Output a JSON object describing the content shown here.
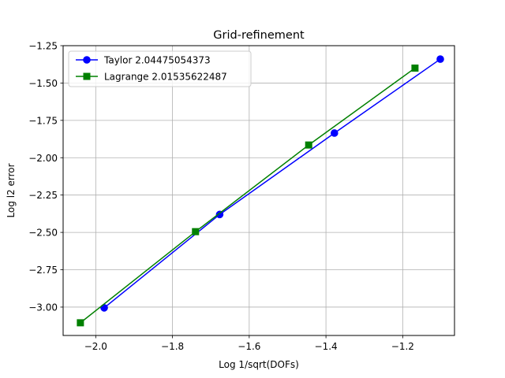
{
  "chart_data": {
    "type": "line",
    "title": "Grid-refinement",
    "xlabel": "Log 1/sqrt(DOFs)",
    "ylabel": "Log l2 error",
    "xlim": [
      -2.085,
      -1.065
    ],
    "ylim": [
      -3.19,
      -1.25
    ],
    "xticks": [
      -2.0,
      -1.8,
      -1.6,
      -1.4,
      -1.2
    ],
    "xtick_labels": [
      "−2.0",
      "−1.8",
      "−1.6",
      "−1.4",
      "−1.2"
    ],
    "yticks": [
      -1.25,
      -1.5,
      -1.75,
      -2.0,
      -2.25,
      -2.5,
      -2.75,
      -3.0
    ],
    "ytick_labels": [
      "−1.25",
      "−1.50",
      "−1.75",
      "−2.00",
      "−2.25",
      "−2.50",
      "−2.75",
      "−3.00"
    ],
    "grid": true,
    "legend_position": "top-left",
    "series": [
      {
        "name": "Taylor 2.04475054373",
        "color": "#0000ff",
        "marker": "circle",
        "x": [
          -1.978,
          -1.677,
          -1.378,
          -1.102
        ],
        "y": [
          -3.005,
          -2.38,
          -1.835,
          -1.34
        ]
      },
      {
        "name": "Lagrange 2.01535622487",
        "color": "#008000",
        "marker": "square",
        "x": [
          -2.04,
          -1.74,
          -1.445,
          -1.168
        ],
        "y": [
          -3.105,
          -2.495,
          -1.915,
          -1.4
        ]
      }
    ]
  }
}
